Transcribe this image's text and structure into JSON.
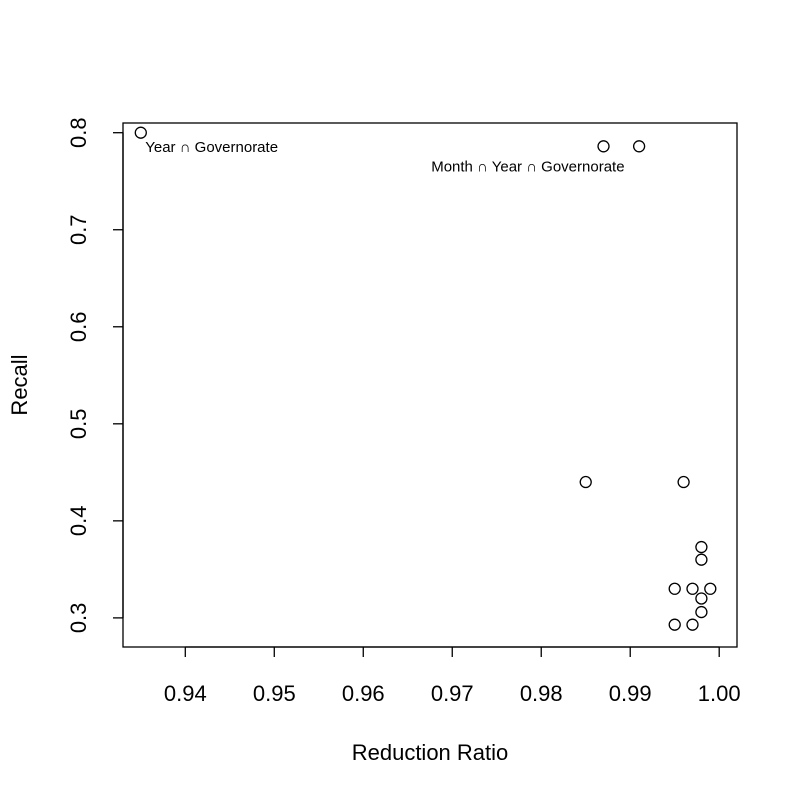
{
  "chart_data": {
    "type": "scatter",
    "title": "",
    "xlabel": "Reduction Ratio",
    "ylabel": "Recall",
    "xlim": [
      0.933,
      1.002
    ],
    "ylim": [
      0.27,
      0.81
    ],
    "x_ticks": [
      0.94,
      0.95,
      0.96,
      0.97,
      0.98,
      0.99,
      1.0
    ],
    "x_tick_labels": [
      "0.94",
      "0.95",
      "0.96",
      "0.97",
      "0.98",
      "0.99",
      "1.00"
    ],
    "y_ticks": [
      0.3,
      0.4,
      0.5,
      0.6,
      0.7,
      0.8
    ],
    "y_tick_labels": [
      "0.3",
      "0.4",
      "0.5",
      "0.6",
      "0.7",
      "0.8"
    ],
    "grid": false,
    "marker": "open-circle",
    "colors": {
      "points": "#000000",
      "axis": "#000000",
      "background": "#ffffff"
    },
    "points": [
      {
        "x": 0.935,
        "y": 0.8
      },
      {
        "x": 0.987,
        "y": 0.786
      },
      {
        "x": 0.991,
        "y": 0.786
      },
      {
        "x": 0.985,
        "y": 0.44
      },
      {
        "x": 0.996,
        "y": 0.44
      },
      {
        "x": 0.998,
        "y": 0.373
      },
      {
        "x": 0.998,
        "y": 0.36
      },
      {
        "x": 0.995,
        "y": 0.33
      },
      {
        "x": 0.997,
        "y": 0.33
      },
      {
        "x": 0.999,
        "y": 0.33
      },
      {
        "x": 0.998,
        "y": 0.32
      },
      {
        "x": 0.998,
        "y": 0.306
      },
      {
        "x": 0.995,
        "y": 0.293
      },
      {
        "x": 0.997,
        "y": 0.293
      }
    ],
    "annotations": [
      {
        "text": "Year ∩ Governorate",
        "x": 0.9355,
        "y": 0.78,
        "anchor": "start"
      },
      {
        "text": "Month ∩ Year ∩ Governorate",
        "x": 0.9785,
        "y": 0.76,
        "anchor": "middle"
      }
    ]
  }
}
